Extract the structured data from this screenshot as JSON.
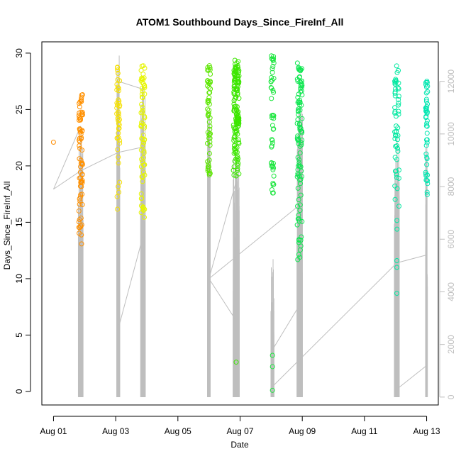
{
  "chart_data": {
    "type": "scatter",
    "title": "ATOM1 Southbound Days_Since_FireInf_All",
    "xlabel": "Date",
    "ylabel": "Days_Since_FireInf_All",
    "xlim": [
      "2011-07-31T15:00",
      "2011-08-13T09:00"
    ],
    "ylim": [
      -1.2,
      31
    ],
    "x_ticks": [
      "Aug 01",
      "Aug 03",
      "Aug 05",
      "Aug 07",
      "Aug 09",
      "Aug 11",
      "Aug 13"
    ],
    "y_ticks": [
      0,
      5,
      10,
      15,
      20,
      25,
      30
    ],
    "secondary_axis": {
      "side": "right",
      "ylim": [
        -300,
        13500
      ],
      "ticks": [
        0,
        2000,
        4000,
        6000,
        8000,
        10000,
        12000
      ],
      "color": "#bebebe"
    },
    "grid": false,
    "legend": "none",
    "colors": {
      "point_palette_start": "#ff8000",
      "point_palette_end": "#00ffaa",
      "line": "#bebebe",
      "frame": "#000000"
    },
    "clusters": [
      {
        "t": "2011-08-01T00:00",
        "spread": 0.02,
        "ymin": 22,
        "ymax": 22.2,
        "n": 1,
        "color": "#ff8c00"
      },
      {
        "t": "2011-08-01T21:00",
        "spread": 0.06,
        "ymin": 13,
        "ymax": 26.7,
        "n": 75,
        "color": "#ff9000"
      },
      {
        "t": "2011-08-03T02:00",
        "spread": 0.05,
        "ymin": 16,
        "ymax": 29,
        "n": 45,
        "color": "#f5e000"
      },
      {
        "t": "2011-08-03T21:00",
        "spread": 0.06,
        "ymin": 13.5,
        "ymax": 29.3,
        "n": 70,
        "color": "#e6f500"
      },
      {
        "t": "2011-08-06T00:00",
        "spread": 0.05,
        "ymin": 19,
        "ymax": 29.1,
        "n": 55,
        "color": "#5ce600"
      },
      {
        "t": "2011-08-06T21:00",
        "spread": 0.09,
        "ymin": 19,
        "ymax": 29.4,
        "n": 140,
        "color": "#3ce600"
      },
      {
        "t": "2011-08-08T01:00",
        "spread": 0.05,
        "ymin": 17,
        "ymax": 29.8,
        "n": 50,
        "color": "#1ee640"
      },
      {
        "t": "2011-08-08T22:00",
        "spread": 0.08,
        "ymin": 11.5,
        "ymax": 29.3,
        "n": 100,
        "color": "#0ee650"
      },
      {
        "t": "2011-08-12T01:00",
        "spread": 0.07,
        "ymin": 13.5,
        "ymax": 28.9,
        "n": 55,
        "color": "#00e8a0"
      },
      {
        "t": "2011-08-13T00:00",
        "spread": 0.03,
        "ymin": 16.5,
        "ymax": 28.5,
        "n": 45,
        "color": "#00e6b0"
      }
    ],
    "outlier_points": [
      {
        "t": "2011-08-06T21:00",
        "y": 2.6,
        "color": "#3ce600"
      },
      {
        "t": "2011-08-08T01:00",
        "y": 0.1,
        "color": "#1ee640"
      },
      {
        "t": "2011-08-08T01:00",
        "y": 2.2,
        "color": "#1ee640"
      },
      {
        "t": "2011-08-08T01:00",
        "y": 3.2,
        "color": "#1ee640"
      },
      {
        "t": "2011-08-12T01:00",
        "y": 8.7,
        "color": "#00e8a0"
      },
      {
        "t": "2011-08-12T01:00",
        "y": 11.0,
        "color": "#00e8a0"
      },
      {
        "t": "2011-08-12T01:00",
        "y": 11.6,
        "color": "#00e8a0"
      },
      {
        "t": "2011-08-01T21:00",
        "y": 14.7,
        "color": "#ff9000"
      }
    ],
    "line_series": {
      "axis": "secondary",
      "color": "#bebebe",
      "segments": [
        {
          "from": [
            "2011-08-01T00:00",
            7900
          ],
          "to": [
            "2011-08-01T21:00",
            8600
          ]
        },
        {
          "from": [
            "2011-08-01T00:00",
            7900
          ],
          "to": [
            "2011-08-01T21:00",
            10300
          ]
        },
        {
          "from": [
            "2011-08-01T21:00",
            8600
          ],
          "to": [
            "2011-08-03T02:00",
            9300
          ]
        },
        {
          "from": [
            "2011-08-03T02:00",
            12000
          ],
          "to": [
            "2011-08-03T21:00",
            11700
          ]
        },
        {
          "from": [
            "2011-08-03T02:00",
            2600
          ],
          "to": [
            "2011-08-03T21:00",
            6100
          ]
        },
        {
          "from": [
            "2011-08-03T02:00",
            9300
          ],
          "to": [
            "2011-08-03T21:00",
            9500
          ]
        },
        {
          "from": [
            "2011-08-06T00:00",
            4500
          ],
          "to": [
            "2011-08-06T21:00",
            8200
          ]
        },
        {
          "from": [
            "2011-08-06T00:00",
            4500
          ],
          "to": [
            "2011-08-06T21:00",
            2900
          ]
        },
        {
          "from": [
            "2011-08-06T00:00",
            4500
          ],
          "to": [
            "2011-08-08T22:00",
            7300
          ]
        },
        {
          "from": [
            "2011-08-08T01:00",
            1800
          ],
          "to": [
            "2011-08-08T22:00",
            3500
          ]
        },
        {
          "from": [
            "2011-08-08T01:00",
            400
          ],
          "to": [
            "2011-08-12T01:00",
            5100
          ]
        },
        {
          "from": [
            "2011-08-12T01:00",
            5100
          ],
          "to": [
            "2011-08-13T00:00",
            5400
          ]
        },
        {
          "from": [
            "2011-08-12T01:00",
            300
          ],
          "to": [
            "2011-08-13T00:00",
            1200
          ]
        }
      ],
      "spikes": [
        {
          "t": "2011-08-01T21:00",
          "spread": 0.08,
          "bottom": 0,
          "top": 10300,
          "n": 40
        },
        {
          "t": "2011-08-03T02:00",
          "spread": 0.05,
          "bottom": 0,
          "top": 13000,
          "n": 20
        },
        {
          "t": "2011-08-03T21:00",
          "spread": 0.08,
          "bottom": 0,
          "top": 12000,
          "n": 50
        },
        {
          "t": "2011-08-06T00:00",
          "spread": 0.05,
          "bottom": 0,
          "top": 10800,
          "n": 40
        },
        {
          "t": "2011-08-06T21:00",
          "spread": 0.1,
          "bottom": 0,
          "top": 9200,
          "n": 70
        },
        {
          "t": "2011-08-08T01:00",
          "spread": 0.05,
          "bottom": 0,
          "top": 5500,
          "n": 30
        },
        {
          "t": "2011-08-08T22:00",
          "spread": 0.09,
          "bottom": 0,
          "top": 11000,
          "n": 60
        },
        {
          "t": "2011-08-12T01:00",
          "spread": 0.08,
          "bottom": 0,
          "top": 10000,
          "n": 50
        },
        {
          "t": "2011-08-13T00:00",
          "spread": 0.03,
          "bottom": 0,
          "top": 10000,
          "n": 30
        }
      ]
    }
  }
}
